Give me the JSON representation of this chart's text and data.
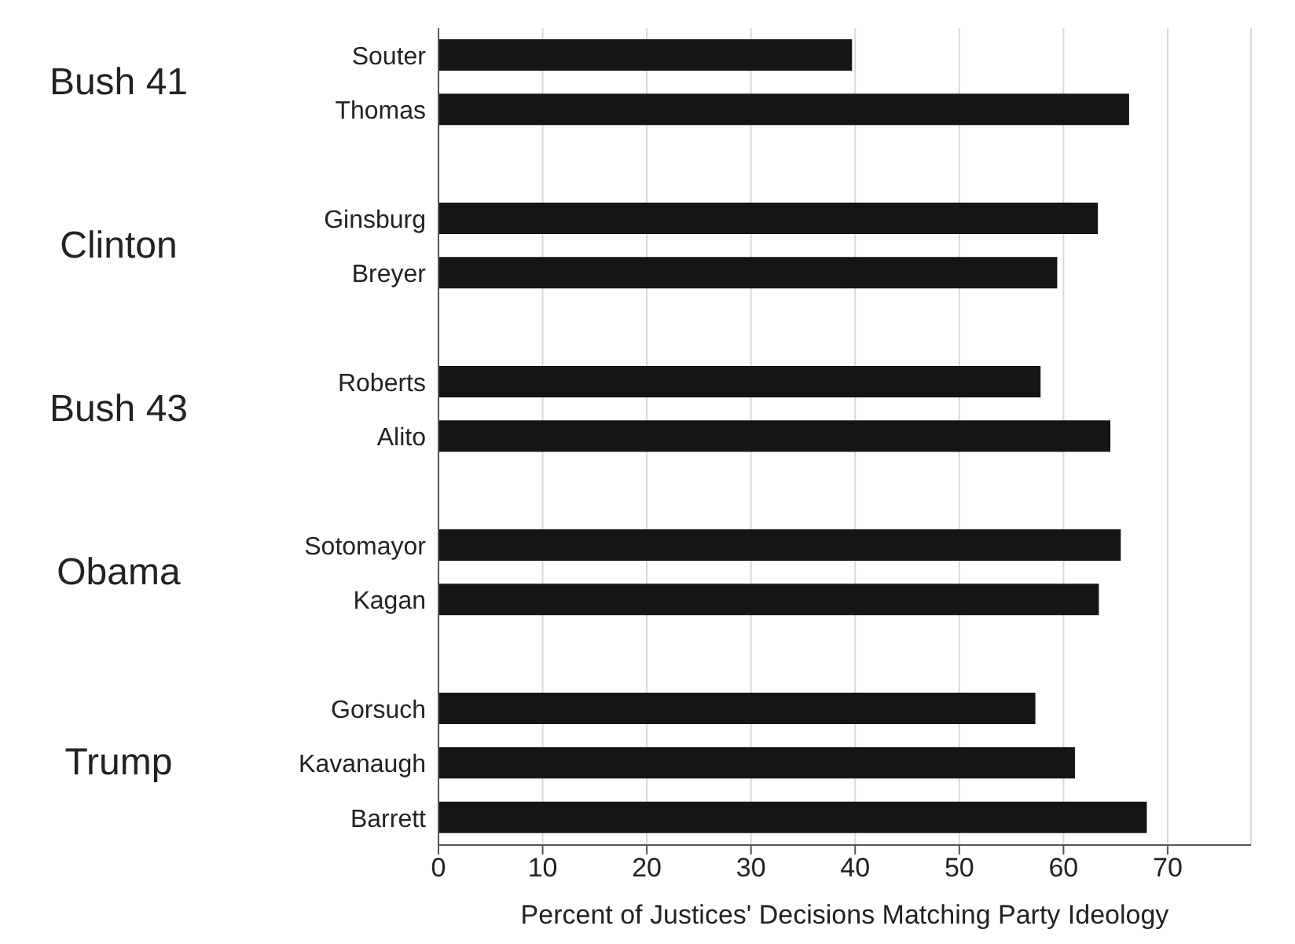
{
  "chart_data": {
    "type": "bar",
    "orientation": "horizontal",
    "xlabel": "Percent of Justices' Decisions Matching Party Ideology",
    "categories": [
      "Souter",
      "Thomas",
      null,
      "Ginsburg",
      "Breyer",
      null,
      "Roberts",
      "Alito",
      null,
      "Sotomayor",
      "Kagan",
      null,
      "Gorsuch",
      "Kavanaugh",
      "Barrett"
    ],
    "values": [
      39.7,
      66.3,
      null,
      63.3,
      59.4,
      null,
      57.8,
      64.5,
      null,
      65.5,
      63.4,
      null,
      57.3,
      61.1,
      68.0
    ],
    "color": "#151515",
    "xlim": [
      0,
      78
    ],
    "xticks": [
      0,
      10,
      20,
      30,
      40,
      50,
      60,
      70
    ],
    "grid": "x",
    "annotations": [
      "Bush 41",
      "Clinton",
      "Bush 43",
      "Obama",
      "Trump"
    ]
  }
}
